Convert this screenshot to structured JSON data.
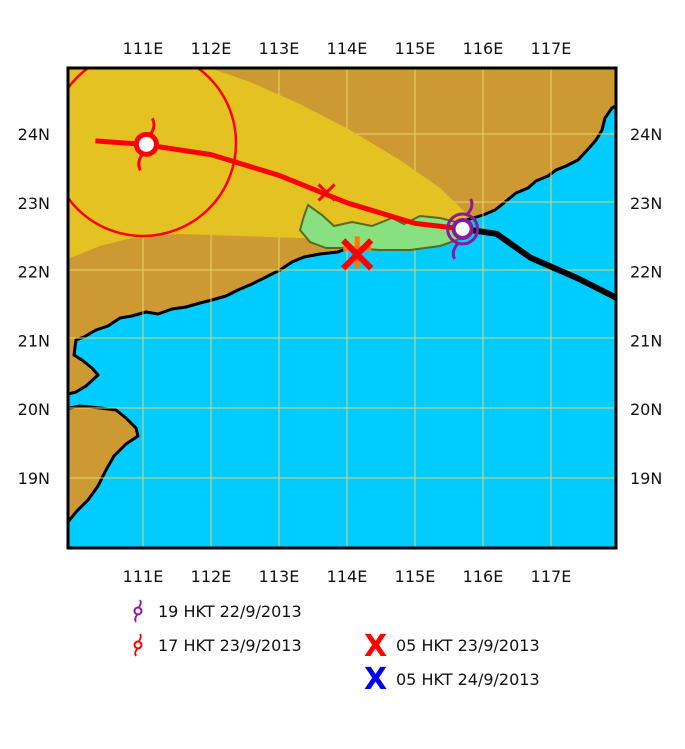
{
  "axes": {
    "lon_labels": [
      "111E",
      "112E",
      "113E",
      "114E",
      "115E",
      "116E",
      "117E"
    ],
    "lat_labels": [
      "24N",
      "23N",
      "22N",
      "21N",
      "20N",
      "19N"
    ]
  },
  "colors": {
    "sea": "#00ccff",
    "land": "#cc9933",
    "cone": "#e4c422",
    "warning_area": "#88e080",
    "past_track": "#000000",
    "forecast_track": "#ff0000",
    "purple_symbol": "#8a1a9a",
    "red_symbol": "#ff0000",
    "blue_mark": "#0000ee",
    "gridline": "#e6d36a"
  },
  "track": {
    "past": [
      [
        118.0,
        21.6
      ],
      [
        117.4,
        21.9
      ],
      [
        116.7,
        22.2
      ],
      [
        116.2,
        22.55
      ],
      [
        115.7,
        22.62
      ]
    ],
    "forecast": [
      [
        115.7,
        22.62
      ],
      [
        115.0,
        22.7
      ],
      [
        114.0,
        23.0
      ],
      [
        113.0,
        23.4
      ],
      [
        112.0,
        23.7
      ],
      [
        111.0,
        23.85
      ],
      [
        110.3,
        23.9
      ]
    ],
    "current_position": [
      115.7,
      22.62
    ],
    "forecast_position": [
      111.05,
      23.85
    ],
    "intermediate_mark": [
      113.7,
      23.15
    ],
    "impact_mark": [
      114.15,
      22.25
    ]
  },
  "legend": {
    "items": [
      {
        "symbol": "purple-typhoon-icon",
        "label": "19 HKT 22/9/2013"
      },
      {
        "symbol": "red-typhoon-icon",
        "label": "17 HKT 23/9/2013"
      },
      {
        "symbol": "red-x-icon",
        "label": "05 HKT 23/9/2013"
      },
      {
        "symbol": "blue-x-icon",
        "label": "05 HKT 24/9/2013"
      }
    ],
    "x_glyph": "X"
  }
}
